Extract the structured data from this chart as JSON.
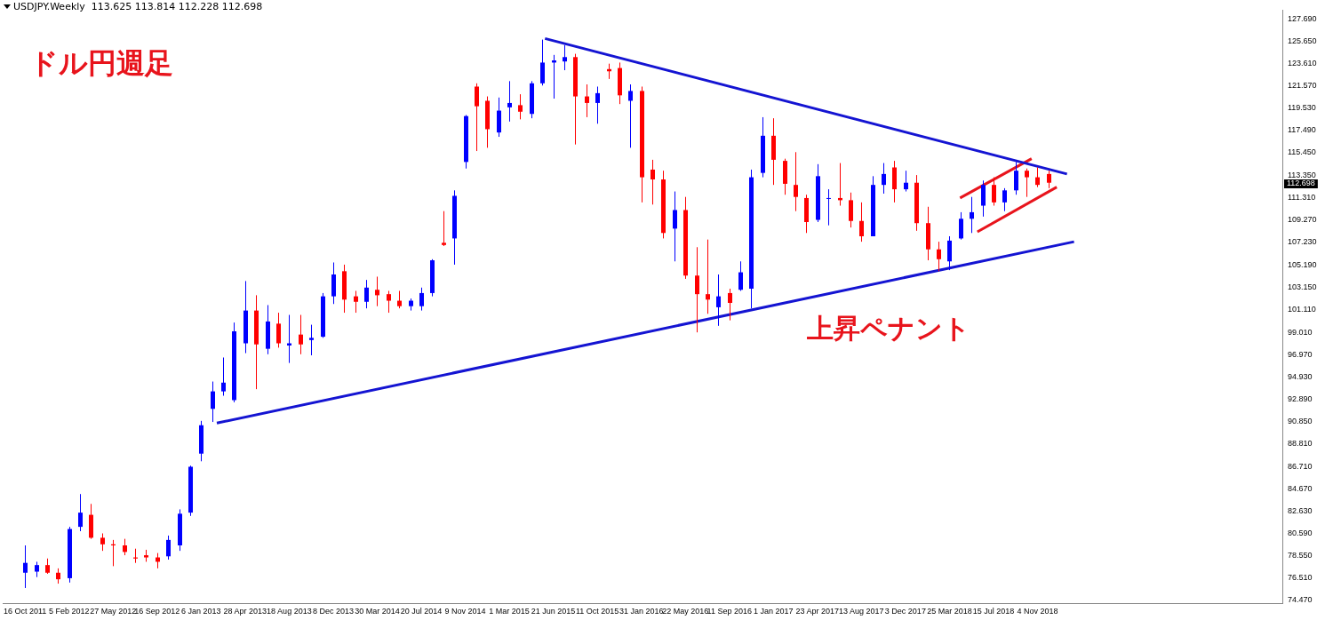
{
  "chart_data": {
    "type": "candlestick",
    "title": "USDJPY.Weekly  113.625 113.814 112.228 112.698",
    "annotations": [
      "ドル円週足",
      "上昇ペナント",
      "112.698"
    ],
    "x": [
      "2011-10-16",
      "2011-11-13",
      "2011-12-11",
      "2012-01-08",
      "2012-02-05",
      "2012-03-04",
      "2012-04-01",
      "2012-04-29",
      "2012-05-27",
      "2012-06-24",
      "2012-07-22",
      "2012-08-19",
      "2012-09-16",
      "2012-10-14",
      "2012-11-11",
      "2012-12-09",
      "2013-01-06",
      "2013-02-03",
      "2013-03-03",
      "2013-03-31",
      "2013-04-28",
      "2013-05-26",
      "2013-06-23",
      "2013-07-21",
      "2013-08-18",
      "2013-09-15",
      "2013-10-13",
      "2013-11-10",
      "2013-12-08",
      "2014-01-05",
      "2014-02-02",
      "2014-03-02",
      "2014-03-30",
      "2014-04-27",
      "2014-05-25",
      "2014-06-22",
      "2014-07-20",
      "2014-08-17",
      "2014-09-14",
      "2014-10-12",
      "2014-11-09",
      "2014-12-07",
      "2015-01-04",
      "2015-02-01",
      "2015-03-01",
      "2015-03-29",
      "2015-04-26",
      "2015-05-24",
      "2015-06-21",
      "2015-07-19",
      "2015-08-16",
      "2015-09-13",
      "2015-10-11",
      "2015-11-08",
      "2015-12-06",
      "2016-01-03",
      "2016-01-31",
      "2016-02-28",
      "2016-03-27",
      "2016-04-24",
      "2016-05-22",
      "2016-06-19",
      "2016-07-17",
      "2016-08-14",
      "2016-09-11",
      "2016-10-09",
      "2016-11-06",
      "2016-12-04",
      "2017-01-01",
      "2017-01-29",
      "2017-02-26",
      "2017-03-26",
      "2017-04-23",
      "2017-05-21",
      "2017-06-18",
      "2017-07-16",
      "2017-08-13",
      "2017-09-10",
      "2017-10-08",
      "2017-11-05",
      "2017-12-03",
      "2017-12-31",
      "2018-01-28",
      "2018-02-25",
      "2018-03-25",
      "2018-04-22",
      "2018-05-20",
      "2018-06-17",
      "2018-07-15",
      "2018-08-12",
      "2018-09-09",
      "2018-10-07",
      "2018-11-04",
      "2018-12-02"
    ],
    "ohlc": [
      [
        77.0,
        79.5,
        75.6,
        77.9
      ],
      [
        77.1,
        78.0,
        76.6,
        77.7
      ],
      [
        77.7,
        78.3,
        76.9,
        77.0
      ],
      [
        77.0,
        77.4,
        76.0,
        76.4
      ],
      [
        76.5,
        81.2,
        76.1,
        81.0
      ],
      [
        81.2,
        84.2,
        80.8,
        82.5
      ],
      [
        82.3,
        83.3,
        80.1,
        80.2
      ],
      [
        80.2,
        80.6,
        79.0,
        79.6
      ],
      [
        79.6,
        80.0,
        77.6,
        79.5
      ],
      [
        79.5,
        80.1,
        78.6,
        78.9
      ],
      [
        78.4,
        79.2,
        77.9,
        78.3
      ],
      [
        78.6,
        79.1,
        78.0,
        78.4
      ],
      [
        78.4,
        78.8,
        77.4,
        78.0
      ],
      [
        78.5,
        80.4,
        78.2,
        80.0
      ],
      [
        79.5,
        82.8,
        79.0,
        82.4
      ],
      [
        82.5,
        86.8,
        82.2,
        86.7
      ],
      [
        87.9,
        90.9,
        87.2,
        90.5
      ],
      [
        92.0,
        94.5,
        90.8,
        93.6
      ],
      [
        93.6,
        96.7,
        93.2,
        94.4
      ],
      [
        92.8,
        99.9,
        92.6,
        99.1
      ],
      [
        98.0,
        103.7,
        97.1,
        101.0
      ],
      [
        101.0,
        102.4,
        93.8,
        97.9
      ],
      [
        97.5,
        101.5,
        97.0,
        100.0
      ],
      [
        99.8,
        100.8,
        97.6,
        98.0
      ],
      [
        97.8,
        100.6,
        96.2,
        98.0
      ],
      [
        98.8,
        100.6,
        97.0,
        97.9
      ],
      [
        98.3,
        99.7,
        96.9,
        98.5
      ],
      [
        98.6,
        102.6,
        98.5,
        102.3
      ],
      [
        102.3,
        105.4,
        101.6,
        104.3
      ],
      [
        104.6,
        105.2,
        100.8,
        102.0
      ],
      [
        102.3,
        102.8,
        100.8,
        101.8
      ],
      [
        101.8,
        103.8,
        101.2,
        103.1
      ],
      [
        102.9,
        104.1,
        101.4,
        102.4
      ],
      [
        102.5,
        102.8,
        100.8,
        101.9
      ],
      [
        101.9,
        102.8,
        101.2,
        101.4
      ],
      [
        101.4,
        102.1,
        101.0,
        101.9
      ],
      [
        101.4,
        103.1,
        101.0,
        102.6
      ],
      [
        102.6,
        105.7,
        102.3,
        105.6
      ],
      [
        107.2,
        110.1,
        106.9,
        107.0
      ],
      [
        107.6,
        112.0,
        105.2,
        111.5
      ],
      [
        114.6,
        118.9,
        114.0,
        118.8
      ],
      [
        121.5,
        121.8,
        115.6,
        119.7
      ],
      [
        120.2,
        120.6,
        115.9,
        117.6
      ],
      [
        117.3,
        120.5,
        116.9,
        119.3
      ],
      [
        119.6,
        122.0,
        118.3,
        120.0
      ],
      [
        119.8,
        120.8,
        118.5,
        119.2
      ],
      [
        119.0,
        122.0,
        118.6,
        121.8
      ],
      [
        121.8,
        125.8,
        121.6,
        123.7
      ],
      [
        123.7,
        124.4,
        120.4,
        123.9
      ],
      [
        123.8,
        125.3,
        123.0,
        124.2
      ],
      [
        124.2,
        124.5,
        116.2,
        120.6
      ],
      [
        120.6,
        121.7,
        118.7,
        120.0
      ],
      [
        120.0,
        121.5,
        118.1,
        120.9
      ],
      [
        123.1,
        123.6,
        122.2,
        122.9
      ],
      [
        123.2,
        123.7,
        119.9,
        120.7
      ],
      [
        120.2,
        121.7,
        115.9,
        121.1
      ],
      [
        121.1,
        121.5,
        110.9,
        113.2
      ],
      [
        113.9,
        114.8,
        110.7,
        113.0
      ],
      [
        113.0,
        113.8,
        107.6,
        108.1
      ],
      [
        108.5,
        111.9,
        105.5,
        110.2
      ],
      [
        110.2,
        111.4,
        103.9,
        104.2
      ],
      [
        104.2,
        106.8,
        99.0,
        102.5
      ],
      [
        102.5,
        107.5,
        100.7,
        102.0
      ],
      [
        101.3,
        104.3,
        99.6,
        102.3
      ],
      [
        102.6,
        103.0,
        100.1,
        101.7
      ],
      [
        102.9,
        105.5,
        102.8,
        104.5
      ],
      [
        103.0,
        113.9,
        101.2,
        113.2
      ],
      [
        113.6,
        118.7,
        113.2,
        117.0
      ],
      [
        117.0,
        118.6,
        112.5,
        114.8
      ],
      [
        114.7,
        114.9,
        111.6,
        112.6
      ],
      [
        112.5,
        115.5,
        110.1,
        111.4
      ],
      [
        111.3,
        111.6,
        108.1,
        109.1
      ],
      [
        109.3,
        114.4,
        109.1,
        113.3
      ],
      [
        111.3,
        112.1,
        108.8,
        111.3
      ],
      [
        111.3,
        114.5,
        110.6,
        111.1
      ],
      [
        111.1,
        111.8,
        108.6,
        109.2
      ],
      [
        109.2,
        110.9,
        107.3,
        107.8
      ],
      [
        107.8,
        113.3,
        107.8,
        112.5
      ],
      [
        112.5,
        114.5,
        111.7,
        113.5
      ],
      [
        114.1,
        114.7,
        110.9,
        112.1
      ],
      [
        112.1,
        113.8,
        111.9,
        112.7
      ],
      [
        112.7,
        113.4,
        108.3,
        109.0
      ],
      [
        109.0,
        110.5,
        105.6,
        106.6
      ],
      [
        106.6,
        107.3,
        104.6,
        105.7
      ],
      [
        105.5,
        107.8,
        104.7,
        107.4
      ],
      [
        107.6,
        110.0,
        107.5,
        109.4
      ],
      [
        109.4,
        111.4,
        108.1,
        110.0
      ],
      [
        110.6,
        112.9,
        109.6,
        112.5
      ],
      [
        112.5,
        113.2,
        110.6,
        110.9
      ],
      [
        110.9,
        112.2,
        110.1,
        112.0
      ],
      [
        112.0,
        114.6,
        111.6,
        113.8
      ],
      [
        113.8,
        114.0,
        111.4,
        113.2
      ],
      [
        113.2,
        114.1,
        112.3,
        112.5
      ],
      [
        113.5,
        113.8,
        112.2,
        112.7
      ]
    ],
    "colors": [
      "#0000ff",
      "#0000ff",
      "#ff0000",
      "#ff0000",
      "#0000ff",
      "#0000ff",
      "#ff0000",
      "#ff0000",
      "#ff0000",
      "#ff0000",
      "#ff0000",
      "#ff0000",
      "#ff0000",
      "#0000ff",
      "#0000ff",
      "#0000ff",
      "#0000ff",
      "#0000ff",
      "#0000ff",
      "#0000ff",
      "#0000ff",
      "#ff0000",
      "#0000ff",
      "#ff0000",
      "#0000ff",
      "#ff0000",
      "#0000ff",
      "#0000ff",
      "#0000ff",
      "#ff0000",
      "#ff0000",
      "#0000ff",
      "#ff0000",
      "#ff0000",
      "#ff0000",
      "#0000ff",
      "#0000ff",
      "#0000ff",
      "#ff0000",
      "#0000ff",
      "#0000ff",
      "#ff0000",
      "#ff0000",
      "#0000ff",
      "#0000ff",
      "#ff0000",
      "#0000ff",
      "#0000ff",
      "#0000ff",
      "#0000ff",
      "#ff0000",
      "#ff0000",
      "#0000ff",
      "#ff0000",
      "#ff0000",
      "#0000ff",
      "#ff0000",
      "#ff0000",
      "#ff0000",
      "#0000ff",
      "#ff0000",
      "#ff0000",
      "#ff0000",
      "#0000ff",
      "#ff0000",
      "#0000ff",
      "#0000ff",
      "#0000ff",
      "#ff0000",
      "#ff0000",
      "#ff0000",
      "#ff0000",
      "#0000ff",
      "#0000ff",
      "#ff0000",
      "#ff0000",
      "#ff0000",
      "#0000ff",
      "#0000ff",
      "#ff0000",
      "#0000ff",
      "#ff0000",
      "#ff0000",
      "#ff0000",
      "#0000ff",
      "#0000ff",
      "#0000ff",
      "#0000ff",
      "#ff0000",
      "#0000ff",
      "#0000ff",
      "#ff0000",
      "#ff0000",
      "#ff0000"
    ],
    "series": [
      {
        "type": "line",
        "color": "#1414d2",
        "x": [
          "2015-05-31",
          "2019-01-18"
        ],
        "values": [
          125.9,
          113.5
        ]
      },
      {
        "type": "line",
        "color": "#1414d2",
        "x": [
          "2013-02-15",
          "2019-02-05"
        ],
        "values": [
          90.7,
          107.3
        ]
      },
      {
        "type": "line",
        "color": "#e8141c",
        "x": [
          "2018-04-21",
          "2018-10-20"
        ],
        "values": [
          111.3,
          114.9
        ]
      },
      {
        "type": "line",
        "color": "#e8141c",
        "x": [
          "2018-06-04",
          "2018-12-23"
        ],
        "values": [
          108.2,
          112.3
        ]
      }
    ],
    "xlim": [
      "2011-08-21",
      "2020-07-19"
    ],
    "xticks": [
      {
        "value": "2011-10-16",
        "label": "16 Oct 2011"
      },
      {
        "value": "2012-02-05",
        "label": "5 Feb 2012"
      },
      {
        "value": "2012-05-27",
        "label": "27 May 2012"
      },
      {
        "value": "2012-09-16",
        "label": "16 Sep 2012"
      },
      {
        "value": "2013-01-06",
        "label": "6 Jan 2013"
      },
      {
        "value": "2013-04-28",
        "label": "28 Apr 2013"
      },
      {
        "value": "2013-08-18",
        "label": "18 Aug 2013"
      },
      {
        "value": "2013-12-08",
        "label": "8 Dec 2013"
      },
      {
        "value": "2014-03-30",
        "label": "30 Mar 2014"
      },
      {
        "value": "2014-07-20",
        "label": "20 Jul 2014"
      },
      {
        "value": "2014-11-09",
        "label": "9 Nov 2014"
      },
      {
        "value": "2015-03-01",
        "label": "1 Mar 2015"
      },
      {
        "value": "2015-06-21",
        "label": "21 Jun 2015"
      },
      {
        "value": "2015-10-11",
        "label": "11 Oct 2015"
      },
      {
        "value": "2016-01-31",
        "label": "31 Jan 2016"
      },
      {
        "value": "2016-05-22",
        "label": "22 May 2016"
      },
      {
        "value": "2016-09-11",
        "label": "11 Sep 2016"
      },
      {
        "value": "2017-01-01",
        "label": "1 Jan 2017"
      },
      {
        "value": "2017-04-23",
        "label": "23 Apr 2017"
      },
      {
        "value": "2017-08-13",
        "label": "13 Aug 2017"
      },
      {
        "value": "2017-12-03",
        "label": "3 Dec 2017"
      },
      {
        "value": "2018-03-25",
        "label": "25 Mar 2018"
      },
      {
        "value": "2018-07-15",
        "label": "15 Jul 2018"
      },
      {
        "value": "2018-11-04",
        "label": "4 Nov 2018"
      }
    ],
    "ylim": [
      74.2,
      128.5
    ],
    "yticks": [
      {
        "value": 127.69,
        "label": "127.690"
      },
      {
        "value": 125.65,
        "label": "125.650"
      },
      {
        "value": 123.61,
        "label": "123.610"
      },
      {
        "value": 121.57,
        "label": "121.570"
      },
      {
        "value": 119.53,
        "label": "119.530"
      },
      {
        "value": 117.49,
        "label": "117.490"
      },
      {
        "value": 115.45,
        "label": "115.450"
      },
      {
        "value": 113.35,
        "label": "113.350"
      },
      {
        "value": 111.31,
        "label": "111.310"
      },
      {
        "value": 109.27,
        "label": "109.270"
      },
      {
        "value": 107.23,
        "label": "107.230"
      },
      {
        "value": 105.19,
        "label": "105.190"
      },
      {
        "value": 103.15,
        "label": "103.150"
      },
      {
        "value": 101.11,
        "label": "101.110"
      },
      {
        "value": 99.01,
        "label": "99.010"
      },
      {
        "value": 96.97,
        "label": "96.970"
      },
      {
        "value": 94.93,
        "label": "94.930"
      },
      {
        "value": 92.89,
        "label": "92.890"
      },
      {
        "value": 90.85,
        "label": "90.850"
      },
      {
        "value": 88.81,
        "label": "88.810"
      },
      {
        "value": 86.71,
        "label": "86.710"
      },
      {
        "value": 84.67,
        "label": "84.670"
      },
      {
        "value": 82.63,
        "label": "82.630"
      },
      {
        "value": 80.59,
        "label": "80.590"
      },
      {
        "value": 78.55,
        "label": "78.550"
      },
      {
        "value": 76.51,
        "label": "76.510"
      },
      {
        "value": 74.47,
        "label": "74.470"
      }
    ],
    "legend": false
  }
}
